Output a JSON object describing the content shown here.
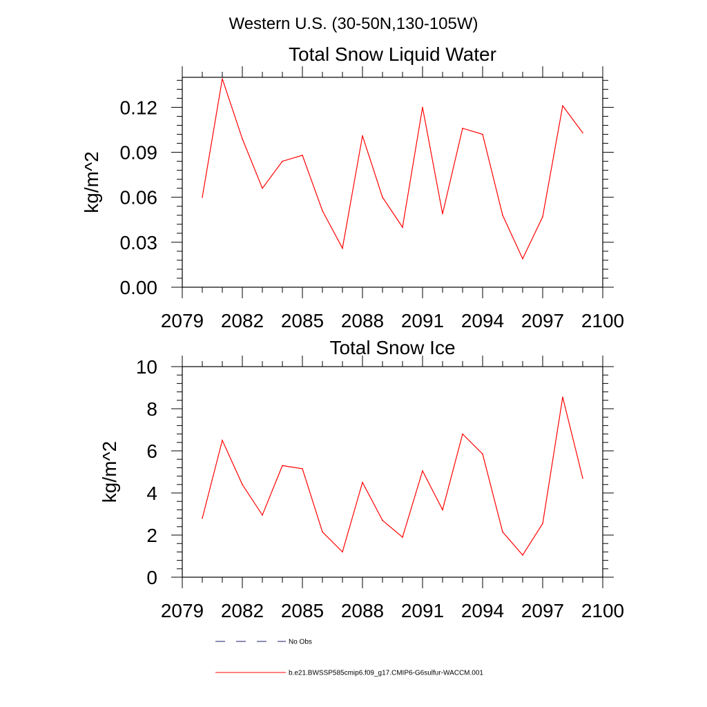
{
  "figure": {
    "title": "Western U.S. (30-50N,130-105W)"
  },
  "colors": {
    "series": "#ff0000",
    "axes": "#000000",
    "no_obs": "#1a1a66"
  },
  "legend": {
    "placement": "bottom",
    "entries": [
      {
        "label": "No Obs",
        "style": "dashed",
        "color": "#1a1a66"
      },
      {
        "label": "b.e21.BWSSP585cmip6.f09_g17.CMIP6-G6sulfur-WACCM.001",
        "style": "solid",
        "color": "#ff0000"
      }
    ]
  },
  "chart_data": [
    {
      "type": "line",
      "title": "Total Snow Liquid Water",
      "xlabel": "",
      "ylabel": "kg/m^2",
      "xlim": [
        2079,
        2100
      ],
      "ylim": [
        0,
        0.14
      ],
      "x_ticks": [
        "2079",
        "2082",
        "2085",
        "2088",
        "2091",
        "2094",
        "2097",
        "2100"
      ],
      "y_ticks": [
        "0.00",
        "0.03",
        "0.06",
        "0.09",
        "0.12"
      ],
      "y_tick_values": [
        0,
        0.03,
        0.06,
        0.09,
        0.12
      ],
      "grid": false,
      "x": [
        2080,
        2081,
        2082,
        2083,
        2084,
        2085,
        2086,
        2087,
        2088,
        2089,
        2090,
        2091,
        2092,
        2093,
        2094,
        2095,
        2096,
        2097,
        2098,
        2099
      ],
      "series": [
        {
          "name": "b.e21.BWSSP585cmip6.f09_g17.CMIP6-G6sulfur-WACCM.001",
          "values": [
            0.06,
            0.139,
            0.099,
            0.066,
            0.084,
            0.088,
            0.051,
            0.026,
            0.101,
            0.06,
            0.04,
            0.12,
            0.049,
            0.106,
            0.102,
            0.048,
            0.019,
            0.047,
            0.121,
            0.103
          ]
        }
      ]
    },
    {
      "type": "line",
      "title": "Total Snow Ice",
      "xlabel": "",
      "ylabel": "kg/m^2",
      "xlim": [
        2079,
        2100
      ],
      "ylim": [
        0,
        10
      ],
      "x_ticks": [
        "2079",
        "2082",
        "2085",
        "2088",
        "2091",
        "2094",
        "2097",
        "2100"
      ],
      "y_ticks": [
        "0",
        "2",
        "4",
        "6",
        "8",
        "10"
      ],
      "y_tick_values": [
        0,
        2,
        4,
        6,
        8,
        10
      ],
      "grid": false,
      "x": [
        2080,
        2081,
        2082,
        2083,
        2084,
        2085,
        2086,
        2087,
        2088,
        2089,
        2090,
        2091,
        2092,
        2093,
        2094,
        2095,
        2096,
        2097,
        2098,
        2099
      ],
      "series": [
        {
          "name": "b.e21.BWSSP585cmip6.f09_g17.CMIP6-G6sulfur-WACCM.001",
          "values": [
            2.8,
            6.5,
            4.4,
            2.95,
            5.3,
            5.15,
            2.15,
            1.2,
            4.5,
            2.7,
            1.9,
            5.05,
            3.2,
            6.8,
            5.85,
            2.15,
            1.05,
            2.55,
            8.55,
            4.7
          ]
        }
      ]
    }
  ]
}
